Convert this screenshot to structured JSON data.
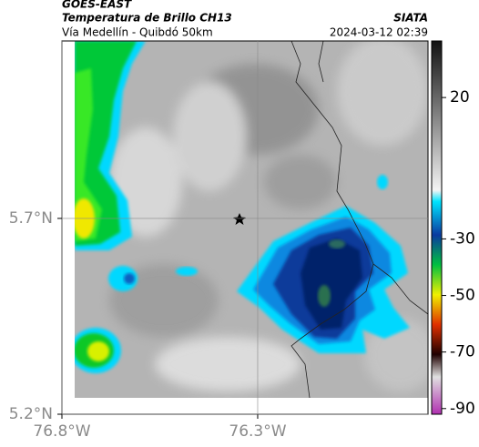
{
  "header": {
    "satellite": "GOES-EAST",
    "product": "Temperatura de Brillo CH13",
    "source": "SIATA",
    "region": "Vía Medellín - Quibdó 50km",
    "datetime": "2024-03-12 02:39"
  },
  "map": {
    "xlim": [
      -76.8,
      -75.865
    ],
    "ylim": [
      5.2,
      6.153
    ],
    "xticks": [
      {
        "value": -76.8,
        "label": "76.8°W"
      },
      {
        "value": -76.3,
        "label": "76.3°W"
      }
    ],
    "yticks": [
      {
        "value": 5.2,
        "label": "5.2°N"
      },
      {
        "value": 5.7,
        "label": "5.7°N"
      }
    ]
  },
  "colorbar": {
    "lim": [
      40,
      -92
    ],
    "ticks": [
      20,
      -30,
      -50,
      -70,
      -90
    ]
  }
}
